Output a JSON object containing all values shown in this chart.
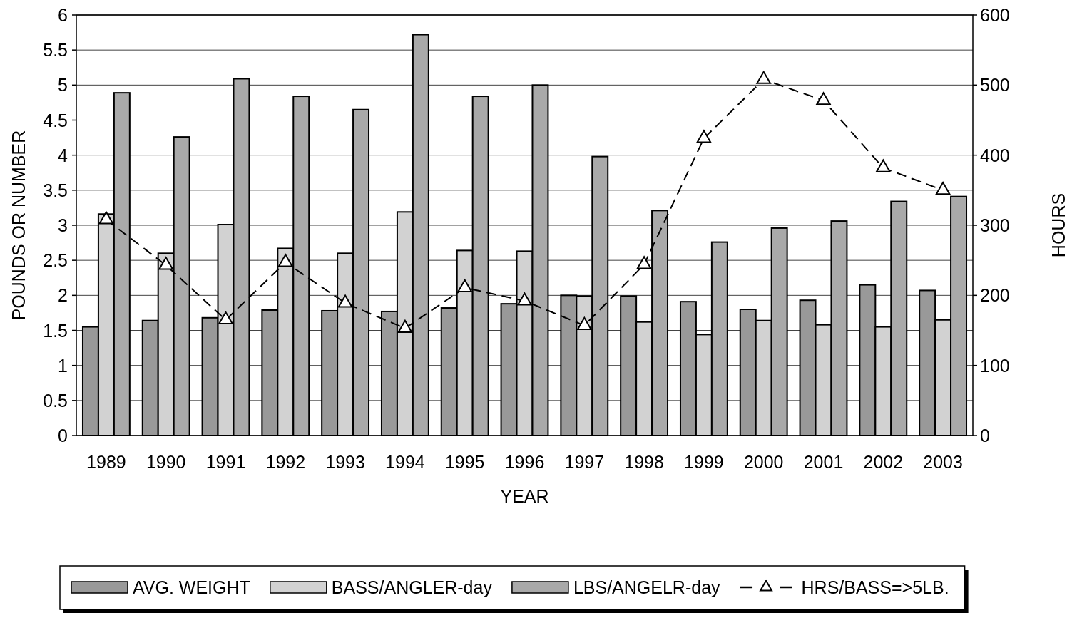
{
  "chart_data": {
    "type": "bar",
    "categories": [
      "1989",
      "1990",
      "1991",
      "1992",
      "1993",
      "1994",
      "1995",
      "1996",
      "1997",
      "1998",
      "1999",
      "2000",
      "2001",
      "2002",
      "2003"
    ],
    "xlabel": "YEAR",
    "ylabel": "POUNDS OR NUMBER",
    "y2label": "HOURS",
    "ylim": [
      0,
      6
    ],
    "yticks": [
      0,
      0.5,
      1,
      1.5,
      2,
      2.5,
      3,
      3.5,
      4,
      4.5,
      5,
      5.5,
      6
    ],
    "y2lim": [
      0,
      600
    ],
    "y2ticks": [
      0,
      100,
      200,
      300,
      400,
      500,
      600
    ],
    "grid": "y",
    "legend": "bottom",
    "series": [
      {
        "name": "AVG. WEIGHT",
        "color": "#999999",
        "values": [
          1.55,
          1.64,
          1.68,
          1.79,
          1.78,
          1.77,
          1.82,
          1.88,
          2.0,
          1.99,
          1.91,
          1.8,
          1.93,
          2.15,
          2.07
        ]
      },
      {
        "name": "BASS/ANGLER-day",
        "color": "#d2d2d2",
        "values": [
          3.16,
          2.6,
          3.01,
          2.67,
          2.6,
          3.19,
          2.64,
          2.63,
          1.99,
          1.62,
          1.44,
          1.64,
          1.58,
          1.55,
          1.65
        ]
      },
      {
        "name": "LBS/ANGELR-day",
        "color": "#a9a9a9",
        "values": [
          4.89,
          4.26,
          5.09,
          4.84,
          4.65,
          5.72,
          4.84,
          5.0,
          3.98,
          3.21,
          2.76,
          2.96,
          3.06,
          3.34,
          3.41
        ]
      },
      {
        "name": "HRS/BASS=>5LB.",
        "type": "line",
        "axis": "y2",
        "color": "#000000",
        "line_style": "dashed",
        "marker": "triangle",
        "values": [
          308,
          243,
          165,
          247,
          189,
          153,
          211,
          192,
          157,
          244,
          424,
          508,
          478,
          382,
          350
        ]
      }
    ]
  }
}
